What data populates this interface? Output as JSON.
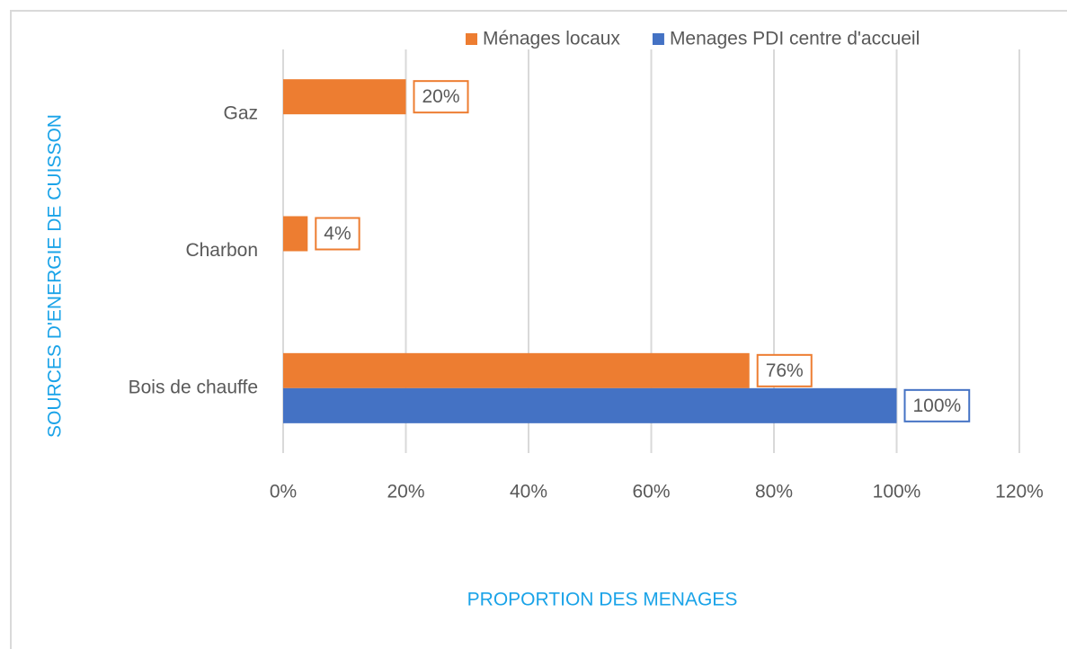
{
  "chart_data": {
    "type": "hbar",
    "categories": [
      "Gaz",
      "Charbon",
      "Bois de chauffe"
    ],
    "series": [
      {
        "name": "Ménages locaux",
        "color": "#ed7d31",
        "values": [
          20,
          4,
          76
        ],
        "value_labels": [
          "20%",
          "4%",
          "76%"
        ]
      },
      {
        "name": "Menages PDI centre d'accueil",
        "color": "#4472c4",
        "values": [
          null,
          null,
          100
        ],
        "value_labels": [
          null,
          null,
          "100%"
        ]
      }
    ],
    "xlim": [
      0,
      120
    ],
    "xticks": [
      {
        "value": 0,
        "label": "0%"
      },
      {
        "value": 20,
        "label": "20%"
      },
      {
        "value": 40,
        "label": "40%"
      },
      {
        "value": 60,
        "label": "60%"
      },
      {
        "value": 80,
        "label": "80%"
      },
      {
        "value": 100,
        "label": "100%"
      },
      {
        "value": 120,
        "label": "120%"
      }
    ],
    "x_label": "PROPORTION DES MENAGES",
    "y_label": "SOURCES D'ENERGIE DE CUISSON",
    "grid": true,
    "legend": "top"
  }
}
